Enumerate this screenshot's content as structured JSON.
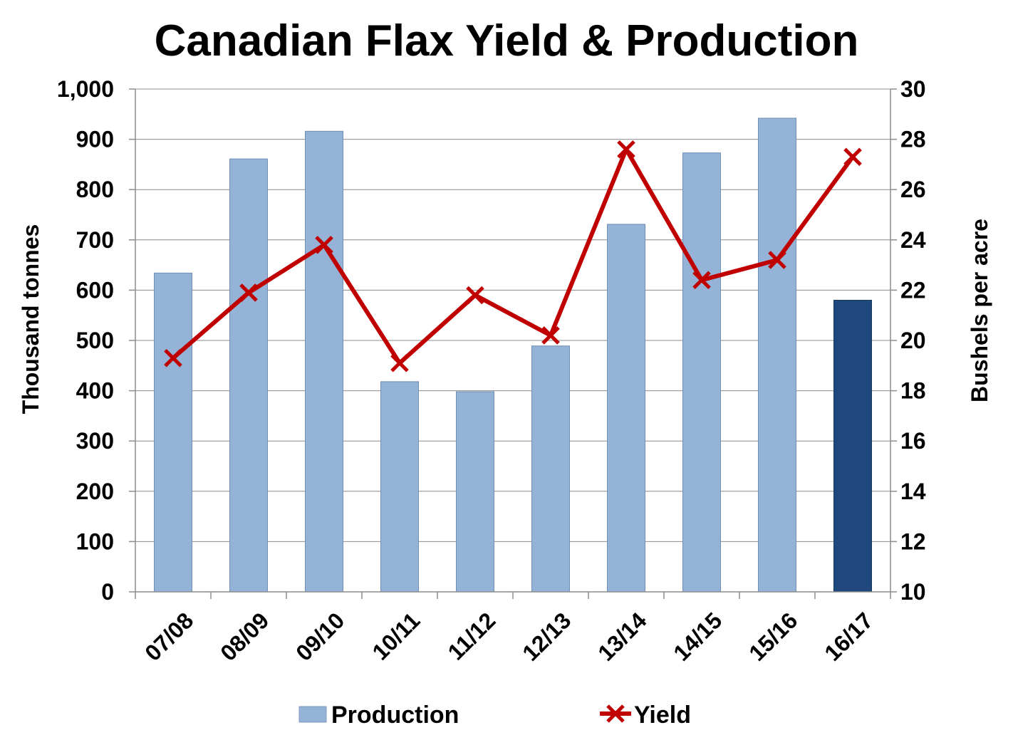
{
  "chart_data": {
    "type": "bar+line",
    "title": "Canadian Flax Yield & Production",
    "categories": [
      "07/08",
      "08/09",
      "09/10",
      "10/11",
      "11/12",
      "12/13",
      "13/14",
      "14/15",
      "15/16",
      "16/17"
    ],
    "series": [
      {
        "name": "Production",
        "type": "bar",
        "axis": "left",
        "values": [
          634,
          861,
          916,
          418,
          398,
          489,
          731,
          873,
          942,
          580
        ],
        "color": "#95B3D7",
        "highlight_index": 9,
        "highlight_color": "#1F497D"
      },
      {
        "name": "Yield",
        "type": "line",
        "axis": "right",
        "values": [
          19.3,
          21.9,
          23.8,
          19.1,
          21.8,
          20.2,
          27.6,
          22.4,
          23.2,
          27.3
        ],
        "color": "#C00000",
        "marker": "x"
      }
    ],
    "y_left": {
      "label": "Thousand tonnes",
      "min": 0,
      "max": 1000,
      "step": 100,
      "ticks": [
        "0",
        "100",
        "200",
        "300",
        "400",
        "500",
        "600",
        "700",
        "800",
        "900",
        "1,000"
      ]
    },
    "y_right": {
      "label": "Bushels per acre",
      "min": 10,
      "max": 30,
      "step": 2,
      "ticks": [
        "10",
        "12",
        "14",
        "16",
        "18",
        "20",
        "22",
        "24",
        "26",
        "28",
        "30"
      ]
    },
    "grid": true,
    "legend": "bottom",
    "legend_entries": [
      "Production",
      "Yield"
    ]
  }
}
